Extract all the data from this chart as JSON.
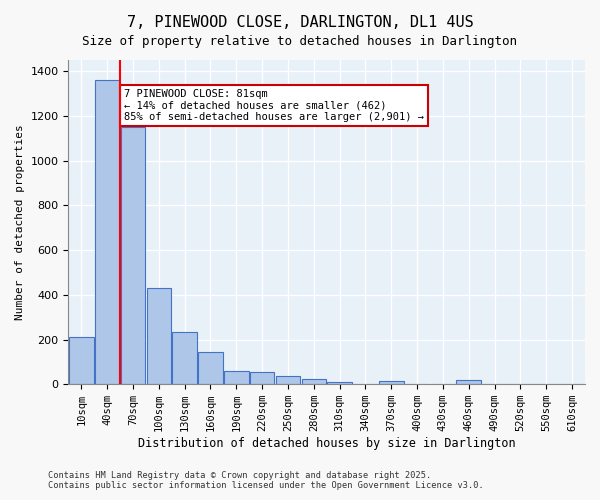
{
  "title": "7, PINEWOOD CLOSE, DARLINGTON, DL1 4US",
  "subtitle": "Size of property relative to detached houses in Darlington",
  "xlabel": "Distribution of detached houses by size in Darlington",
  "ylabel": "Number of detached properties",
  "bar_labels": [
    "10sqm",
    "40sqm",
    "70sqm",
    "100sqm",
    "130sqm",
    "160sqm",
    "190sqm",
    "220sqm",
    "250sqm",
    "280sqm",
    "310sqm",
    "340sqm",
    "370sqm",
    "400sqm",
    "430sqm",
    "460sqm",
    "490sqm",
    "520sqm",
    "550sqm",
    "610sqm"
  ],
  "bar_values": [
    210,
    1360,
    1150,
    430,
    235,
    145,
    60,
    55,
    38,
    22,
    12,
    0,
    15,
    0,
    0,
    18,
    0,
    0,
    0,
    0
  ],
  "bar_color": "#aec6e8",
  "bar_edge_color": "#4472c4",
  "red_line_x": 1,
  "annotation_text": "7 PINEWOOD CLOSE: 81sqm\n← 14% of detached houses are smaller (462)\n85% of semi-detached houses are larger (2,901) →",
  "annotation_box_color": "#ffffff",
  "annotation_box_edge": "#cc0000",
  "ylim": [
    0,
    1450
  ],
  "yticks": [
    0,
    200,
    400,
    600,
    800,
    1000,
    1200,
    1400
  ],
  "bg_color": "#e8f0f8",
  "grid_color": "#ffffff",
  "footer_line1": "Contains HM Land Registry data © Crown copyright and database right 2025.",
  "footer_line2": "Contains public sector information licensed under the Open Government Licence v3.0."
}
